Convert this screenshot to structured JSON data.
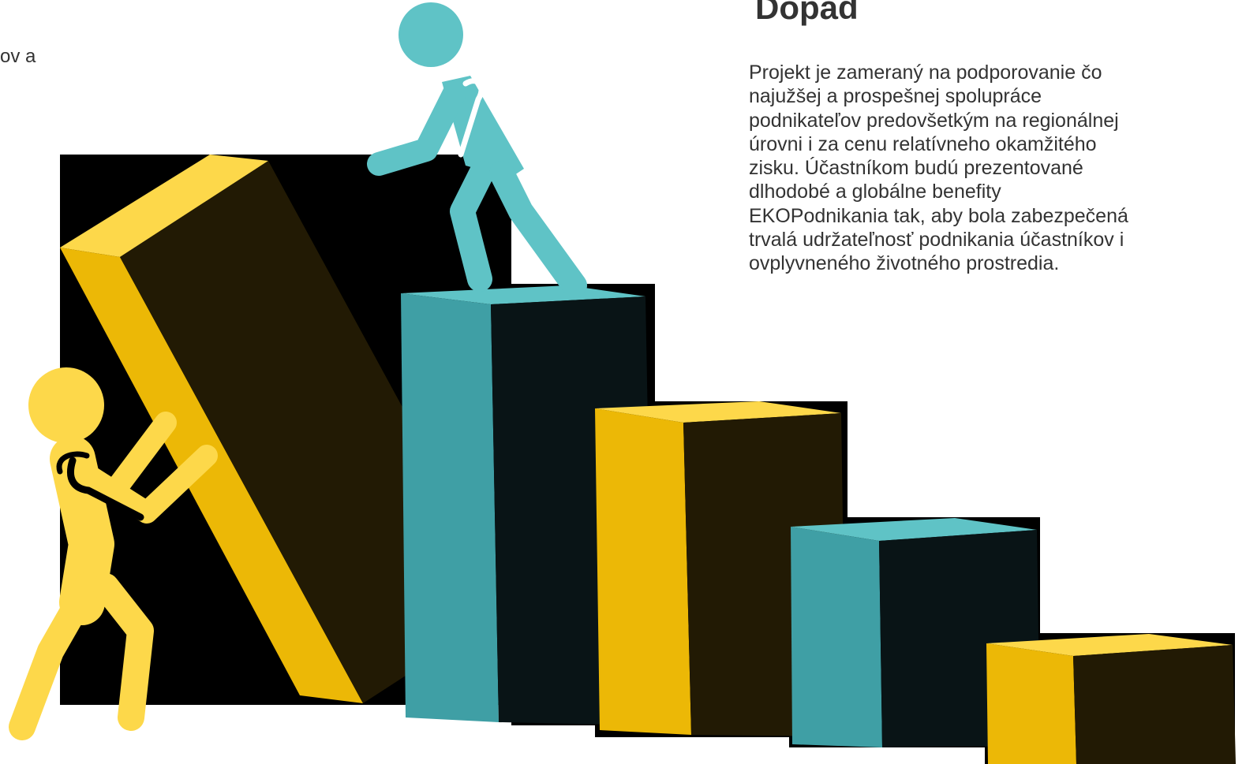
{
  "left_fragment": "ov a",
  "heading": "Dopad",
  "paragraph_lines": [
    "Projekt je zameraný na podporovanie čo",
    "najužšej a prospešnej spolupráce",
    "podnikateľov predovšetkým na regionálnej",
    "úrovni i za cenu relatívneho okamžitého",
    "zisku. Účastníkom budú prezentované",
    "dlhodobé a globálne benefity",
    "EKOPodnikania tak, aby bola zabezpečená",
    "trvalá udržateľnosť podnikania účastníkov i",
    "ovplyvneného životného prostredia."
  ],
  "illustration": {
    "icons": [
      "person-pushing-block-icon",
      "person-climbing-steps-icon"
    ],
    "colors": {
      "yellow_light": "#fdd84a",
      "yellow_dark": "#ecb806",
      "teal_light": "#5fc3c6",
      "teal_dark": "#3f9fa5",
      "block_front_dark": "#221a04",
      "block_front_teal_dark": "#091416",
      "background_black": "#000000"
    }
  }
}
